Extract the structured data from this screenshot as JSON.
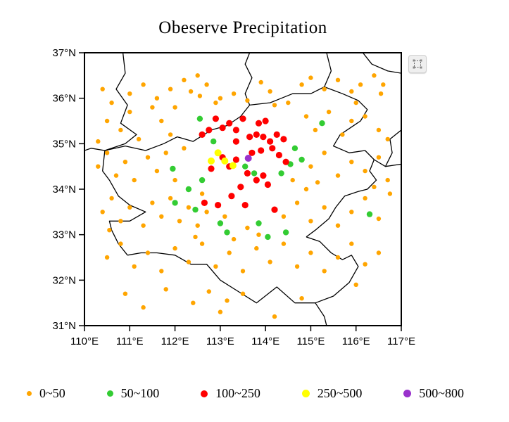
{
  "title": "Obeserve Precipitation",
  "tool_icon": {
    "name": "region-select-icon"
  },
  "chart_data": {
    "type": "scatter",
    "title": "Obeserve Precipitation",
    "xlabel": "",
    "ylabel": "",
    "xlim": [
      110,
      117
    ],
    "ylim": [
      31,
      37
    ],
    "grid": false,
    "legend_position": "bottom",
    "x_ticks": [
      "110°E",
      "111°E",
      "112°E",
      "113°E",
      "114°E",
      "115°E",
      "116°E",
      "117°E"
    ],
    "y_ticks": [
      "31°N",
      "32°N",
      "33°N",
      "34°N",
      "35°N",
      "36°N",
      "37°N"
    ],
    "series": [
      {
        "name": "0~50",
        "color": "#FFA500",
        "size": 3.2,
        "points": [
          [
            111.0,
            36.1
          ],
          [
            111.3,
            36.3
          ],
          [
            111.6,
            36.0
          ],
          [
            112.2,
            36.4
          ],
          [
            112.35,
            36.15
          ],
          [
            112.5,
            36.5
          ],
          [
            112.55,
            36.05
          ],
          [
            112.7,
            36.3
          ],
          [
            113.0,
            36.0
          ],
          [
            113.9,
            36.35
          ],
          [
            114.1,
            36.15
          ],
          [
            114.8,
            36.3
          ],
          [
            115.0,
            36.45
          ],
          [
            115.3,
            36.2
          ],
          [
            115.6,
            36.4
          ],
          [
            115.9,
            36.15
          ],
          [
            116.1,
            36.3
          ],
          [
            116.4,
            36.5
          ],
          [
            116.55,
            36.1
          ],
          [
            110.4,
            36.2
          ],
          [
            111.9,
            36.2
          ],
          [
            112.9,
            35.9
          ],
          [
            113.3,
            36.1
          ],
          [
            113.6,
            35.95
          ],
          [
            114.2,
            35.85
          ],
          [
            114.5,
            35.9
          ],
          [
            116.0,
            35.9
          ],
          [
            116.6,
            36.3
          ],
          [
            110.6,
            35.9
          ],
          [
            110.5,
            35.5
          ],
          [
            110.8,
            35.3
          ],
          [
            111.0,
            35.7
          ],
          [
            111.2,
            35.1
          ],
          [
            111.5,
            35.8
          ],
          [
            111.7,
            35.5
          ],
          [
            111.9,
            35.2
          ],
          [
            112.0,
            35.8
          ],
          [
            114.9,
            35.6
          ],
          [
            115.1,
            35.3
          ],
          [
            115.4,
            35.7
          ],
          [
            115.7,
            35.2
          ],
          [
            115.9,
            35.5
          ],
          [
            116.2,
            35.6
          ],
          [
            116.5,
            35.3
          ],
          [
            116.7,
            35.1
          ],
          [
            110.3,
            35.05
          ],
          [
            112.2,
            34.9
          ],
          [
            110.3,
            34.5
          ],
          [
            110.5,
            34.8
          ],
          [
            110.7,
            34.3
          ],
          [
            110.9,
            34.6
          ],
          [
            111.1,
            34.2
          ],
          [
            111.4,
            34.7
          ],
          [
            111.6,
            34.4
          ],
          [
            111.8,
            34.8
          ],
          [
            112.0,
            34.2
          ],
          [
            115.0,
            34.5
          ],
          [
            115.3,
            34.8
          ],
          [
            115.6,
            34.3
          ],
          [
            115.9,
            34.6
          ],
          [
            116.2,
            34.4
          ],
          [
            116.5,
            34.7
          ],
          [
            116.7,
            34.2
          ],
          [
            116.4,
            34.05
          ],
          [
            115.15,
            34.15
          ],
          [
            114.6,
            34.2
          ],
          [
            114.9,
            34.0
          ],
          [
            110.4,
            33.5
          ],
          [
            110.6,
            33.8
          ],
          [
            110.8,
            33.3
          ],
          [
            111.0,
            33.6
          ],
          [
            111.3,
            33.2
          ],
          [
            111.5,
            33.7
          ],
          [
            111.7,
            33.4
          ],
          [
            111.9,
            33.8
          ],
          [
            112.1,
            33.3
          ],
          [
            112.3,
            33.6
          ],
          [
            112.5,
            33.2
          ],
          [
            112.7,
            33.5
          ],
          [
            113.6,
            33.15
          ],
          [
            114.4,
            33.4
          ],
          [
            114.7,
            33.7
          ],
          [
            115.0,
            33.3
          ],
          [
            115.3,
            33.6
          ],
          [
            115.6,
            33.2
          ],
          [
            115.9,
            33.5
          ],
          [
            116.2,
            33.8
          ],
          [
            116.5,
            33.35
          ],
          [
            112.6,
            33.9
          ],
          [
            113.1,
            33.4
          ],
          [
            110.55,
            33.1
          ],
          [
            116.75,
            33.9
          ],
          [
            113.85,
            33.0
          ],
          [
            110.5,
            32.5
          ],
          [
            110.8,
            32.8
          ],
          [
            111.1,
            32.3
          ],
          [
            111.4,
            32.6
          ],
          [
            111.7,
            32.2
          ],
          [
            112.0,
            32.7
          ],
          [
            112.3,
            32.4
          ],
          [
            112.6,
            32.8
          ],
          [
            112.9,
            32.3
          ],
          [
            113.2,
            32.6
          ],
          [
            113.5,
            32.2
          ],
          [
            113.8,
            32.7
          ],
          [
            114.1,
            32.4
          ],
          [
            114.4,
            32.8
          ],
          [
            114.7,
            32.3
          ],
          [
            115.0,
            32.6
          ],
          [
            115.3,
            32.2
          ],
          [
            115.6,
            32.5
          ],
          [
            115.9,
            32.8
          ],
          [
            116.2,
            32.35
          ],
          [
            116.5,
            32.6
          ],
          [
            113.3,
            32.9
          ],
          [
            112.45,
            32.95
          ],
          [
            110.9,
            31.7
          ],
          [
            111.3,
            31.4
          ],
          [
            111.8,
            31.8
          ],
          [
            112.4,
            31.5
          ],
          [
            113.0,
            31.3
          ],
          [
            113.5,
            31.7
          ],
          [
            114.2,
            31.2
          ],
          [
            114.8,
            31.6
          ],
          [
            116.0,
            31.9
          ],
          [
            113.15,
            31.55
          ],
          [
            112.75,
            31.75
          ]
        ]
      },
      {
        "name": "50~100",
        "color": "#33CC33",
        "size": 4.2,
        "points": [
          [
            112.6,
            34.2
          ],
          [
            112.3,
            34.0
          ],
          [
            112.0,
            33.7
          ],
          [
            112.45,
            33.55
          ],
          [
            113.0,
            33.25
          ],
          [
            113.15,
            33.05
          ],
          [
            113.85,
            33.25
          ],
          [
            114.05,
            32.95
          ],
          [
            113.75,
            34.35
          ],
          [
            114.35,
            34.35
          ],
          [
            114.55,
            34.55
          ],
          [
            114.65,
            34.9
          ],
          [
            115.25,
            35.45
          ],
          [
            112.85,
            35.05
          ],
          [
            111.95,
            34.45
          ],
          [
            116.3,
            33.45
          ],
          [
            113.55,
            34.5
          ],
          [
            114.8,
            34.65
          ],
          [
            112.55,
            35.55
          ],
          [
            114.45,
            33.05
          ]
        ]
      },
      {
        "name": "100~250",
        "color": "#FF0000",
        "size": 4.6,
        "points": [
          [
            112.6,
            35.2
          ],
          [
            112.75,
            35.3
          ],
          [
            112.9,
            35.55
          ],
          [
            113.05,
            35.35
          ],
          [
            113.2,
            35.45
          ],
          [
            113.35,
            35.3
          ],
          [
            113.5,
            35.55
          ],
          [
            113.85,
            35.45
          ],
          [
            114.0,
            35.5
          ],
          [
            113.65,
            35.15
          ],
          [
            113.8,
            35.2
          ],
          [
            113.95,
            35.15
          ],
          [
            114.1,
            35.05
          ],
          [
            114.25,
            35.2
          ],
          [
            114.4,
            35.1
          ],
          [
            114.15,
            34.9
          ],
          [
            113.9,
            34.85
          ],
          [
            113.7,
            34.8
          ],
          [
            114.3,
            34.75
          ],
          [
            114.45,
            34.6
          ],
          [
            113.35,
            34.65
          ],
          [
            113.2,
            34.5
          ],
          [
            113.6,
            34.35
          ],
          [
            113.8,
            34.2
          ],
          [
            113.95,
            34.3
          ],
          [
            114.05,
            34.1
          ],
          [
            113.45,
            34.05
          ],
          [
            113.25,
            33.85
          ],
          [
            113.55,
            33.65
          ],
          [
            112.95,
            33.65
          ],
          [
            112.8,
            34.45
          ],
          [
            113.05,
            34.7
          ],
          [
            114.2,
            33.55
          ],
          [
            113.35,
            35.05
          ],
          [
            112.65,
            33.7
          ]
        ]
      },
      {
        "name": "250~500",
        "color": "#FFFF00",
        "size": 5.0,
        "points": [
          [
            112.95,
            34.8
          ],
          [
            113.1,
            34.62
          ],
          [
            113.28,
            34.52
          ],
          [
            112.8,
            34.62
          ]
        ]
      },
      {
        "name": "500~800",
        "color": "#9932CC",
        "size": 5.0,
        "points": [
          [
            113.62,
            34.68
          ]
        ]
      }
    ],
    "boundaries": [
      [
        [
          110.85,
          37.0
        ],
        [
          110.9,
          36.55
        ],
        [
          110.7,
          36.2
        ],
        [
          110.95,
          35.85
        ],
        [
          110.8,
          35.45
        ],
        [
          111.15,
          35.2
        ],
        [
          110.9,
          35.0
        ],
        [
          110.45,
          34.85
        ],
        [
          110.15,
          34.9
        ],
        [
          110.0,
          34.85
        ]
      ],
      [
        [
          110.45,
          34.85
        ],
        [
          110.9,
          34.95
        ],
        [
          111.35,
          34.85
        ],
        [
          111.75,
          35.0
        ],
        [
          112.05,
          35.15
        ],
        [
          112.4,
          35.05
        ],
        [
          112.8,
          35.3
        ],
        [
          113.15,
          35.4
        ],
        [
          113.45,
          35.6
        ],
        [
          113.65,
          35.85
        ],
        [
          113.55,
          36.1
        ],
        [
          113.7,
          36.45
        ],
        [
          113.55,
          36.75
        ],
        [
          113.65,
          37.0
        ]
      ],
      [
        [
          115.35,
          37.0
        ],
        [
          115.45,
          36.6
        ],
        [
          115.3,
          36.25
        ],
        [
          115.0,
          36.1
        ],
        [
          114.6,
          36.1
        ],
        [
          114.35,
          36.0
        ],
        [
          114.1,
          35.9
        ],
        [
          113.65,
          35.85
        ]
      ],
      [
        [
          115.3,
          36.25
        ],
        [
          115.7,
          36.1
        ],
        [
          116.05,
          35.95
        ],
        [
          116.25,
          35.75
        ],
        [
          116.1,
          35.5
        ],
        [
          115.65,
          35.2
        ],
        [
          115.5,
          34.95
        ],
        [
          115.85,
          34.8
        ],
        [
          116.2,
          34.85
        ],
        [
          116.4,
          34.65
        ],
        [
          116.65,
          34.5
        ],
        [
          117.0,
          34.55
        ]
      ],
      [
        [
          116.4,
          34.65
        ],
        [
          116.3,
          34.4
        ],
        [
          116.45,
          34.2
        ],
        [
          116.25,
          34.0
        ],
        [
          116.05,
          33.95
        ],
        [
          115.75,
          33.85
        ],
        [
          115.55,
          33.6
        ],
        [
          115.4,
          33.35
        ],
        [
          115.1,
          33.1
        ],
        [
          114.9,
          32.95
        ]
      ],
      [
        [
          114.9,
          32.95
        ],
        [
          115.2,
          32.85
        ],
        [
          115.45,
          32.6
        ],
        [
          115.7,
          32.45
        ],
        [
          115.9,
          32.55
        ],
        [
          116.05,
          32.3
        ],
        [
          115.85,
          31.95
        ],
        [
          115.5,
          31.65
        ],
        [
          115.1,
          31.5
        ],
        [
          114.65,
          31.5
        ],
        [
          114.25,
          31.85
        ],
        [
          113.8,
          31.5
        ],
        [
          113.4,
          31.75
        ],
        [
          113.0,
          32.0
        ],
        [
          112.7,
          32.35
        ],
        [
          112.35,
          32.35
        ],
        [
          112.0,
          32.55
        ],
        [
          111.6,
          32.6
        ],
        [
          111.25,
          32.6
        ],
        [
          110.95,
          32.55
        ]
      ],
      [
        [
          110.95,
          32.55
        ],
        [
          110.75,
          32.8
        ],
        [
          110.6,
          33.1
        ],
        [
          110.55,
          33.3
        ],
        [
          111.0,
          33.3
        ],
        [
          111.35,
          33.5
        ],
        [
          111.0,
          33.65
        ],
        [
          110.75,
          33.85
        ],
        [
          110.55,
          34.2
        ],
        [
          110.4,
          34.4
        ],
        [
          110.45,
          34.85
        ]
      ],
      [
        [
          117.0,
          35.3
        ],
        [
          116.75,
          35.1
        ],
        [
          116.8,
          34.8
        ],
        [
          116.65,
          34.5
        ]
      ],
      [
        [
          115.1,
          31.5
        ],
        [
          115.3,
          31.2
        ],
        [
          115.35,
          31.0
        ]
      ],
      [
        [
          116.15,
          37.0
        ],
        [
          116.35,
          36.75
        ],
        [
          116.7,
          36.6
        ],
        [
          117.0,
          36.55
        ]
      ]
    ]
  }
}
